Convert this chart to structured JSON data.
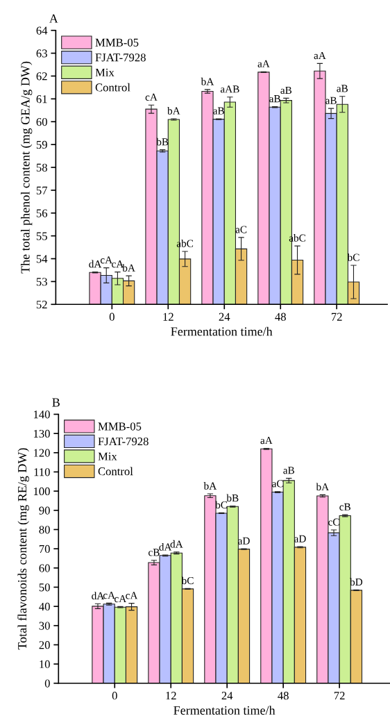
{
  "chart_data": [
    {
      "type": "bar",
      "title": "A",
      "xlabel": "Fermentation time/h",
      "ylabel": "The total phenol content (mg GEA/g DW)",
      "categories": [
        "0",
        "12",
        "24",
        "48",
        "72"
      ],
      "ylim": [
        52,
        64
      ],
      "yticks": [
        52,
        53,
        54,
        55,
        56,
        57,
        58,
        59,
        60,
        61,
        62,
        63,
        64
      ],
      "legend": "top left",
      "grid": false,
      "series": [
        {
          "name": "MMB-05",
          "color": "#ffb0dc",
          "values": [
            53.4,
            60.55,
            61.33,
            62.17,
            62.22
          ],
          "errors": [
            0.02,
            0.18,
            0.08,
            0.02,
            0.33
          ],
          "value_labels": [
            "dA",
            "cA",
            "bA",
            "aA",
            "aA"
          ]
        },
        {
          "name": "FJAT-7928",
          "color": "#b8c0ff",
          "values": [
            53.27,
            58.72,
            60.11,
            60.64,
            60.36
          ],
          "errors": [
            0.33,
            0.05,
            0.02,
            0.02,
            0.22
          ],
          "value_labels": [
            "cA",
            "bB",
            "aB",
            "aB",
            "aB"
          ]
        },
        {
          "name": "Mix",
          "color": "#ccf094",
          "values": [
            53.14,
            60.1,
            60.86,
            60.93,
            60.76
          ],
          "errors": [
            0.28,
            0.03,
            0.22,
            0.1,
            0.35
          ],
          "value_labels": [
            "cA",
            "bA",
            "aAB",
            "aB",
            "aB"
          ]
        },
        {
          "name": "Control",
          "color": "#ecc46a",
          "values": [
            53.03,
            53.99,
            54.43,
            53.94,
            52.98
          ],
          "errors": [
            0.22,
            0.33,
            0.5,
            0.62,
            0.73
          ],
          "value_labels": [
            "bA",
            "abC",
            "aC",
            "abC",
            "bC"
          ]
        }
      ]
    },
    {
      "type": "bar",
      "title": "B",
      "xlabel": "Fermentation time/h",
      "ylabel": "Total flavonoids content (mg RE/g DW)",
      "categories": [
        "0",
        "12",
        "24",
        "48",
        "72"
      ],
      "ylim": [
        0,
        140
      ],
      "yticks": [
        0,
        10,
        20,
        30,
        40,
        50,
        60,
        70,
        80,
        90,
        100,
        110,
        120,
        130,
        140
      ],
      "legend": "top left",
      "grid": false,
      "series": [
        {
          "name": "MMB-05",
          "color": "#ffb0dc",
          "values": [
            40.1,
            62.8,
            97.6,
            122,
            97.5
          ],
          "errors": [
            1.3,
            1.2,
            1,
            0.3,
            0.6
          ],
          "value_labels": [
            "dA",
            "cB",
            "bA",
            "aA",
            "bA"
          ]
        },
        {
          "name": "FJAT-7928",
          "color": "#b8c0ff",
          "values": [
            41.2,
            66.5,
            88.5,
            99.5,
            78.3
          ],
          "errors": [
            0.5,
            0.3,
            0.2,
            0.3,
            1.5
          ],
          "value_labels": [
            "cA",
            "dA",
            "bC",
            "aC",
            "cC"
          ]
        },
        {
          "name": "Mix",
          "color": "#ccf094",
          "values": [
            39.6,
            67.8,
            92,
            105.5,
            87.2
          ],
          "errors": [
            0.3,
            0.5,
            0.3,
            1.2,
            0.5
          ],
          "value_labels": [
            "cA",
            "dA",
            "bB",
            "aB",
            "cB"
          ]
        },
        {
          "name": "Control",
          "color": "#ecc46a",
          "values": [
            39.8,
            49.1,
            69.8,
            70.8,
            48.4
          ],
          "errors": [
            1.8,
            0.2,
            0.2,
            0.3,
            0.2
          ],
          "value_labels": [
            "cA",
            "bC",
            "aD",
            "aD",
            "bD"
          ]
        }
      ]
    }
  ]
}
